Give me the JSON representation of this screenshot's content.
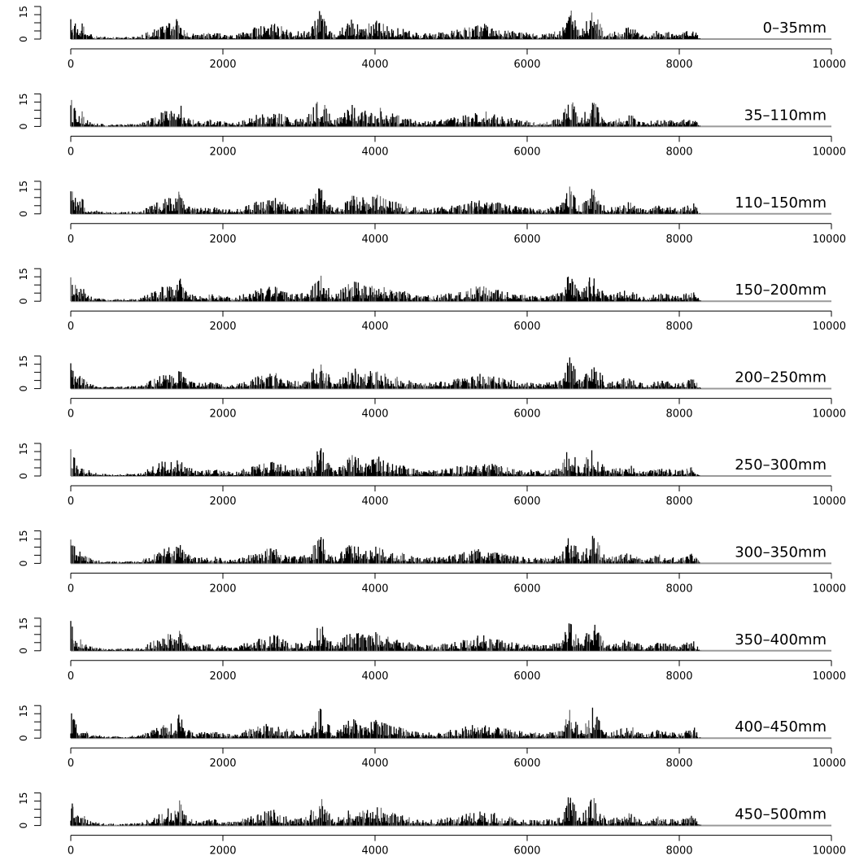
{
  "chart_data": {
    "type": "bar",
    "title": "",
    "xlabel": "",
    "ylabel": "",
    "xlim": [
      0,
      10000
    ],
    "ylim": [
      0,
      18
    ],
    "x_ticks": [
      "0",
      "2000",
      "4000",
      "6000",
      "8000",
      "10000"
    ],
    "y_tick_labels": [
      "0",
      "15"
    ],
    "x_tick_values": [
      0,
      2000,
      4000,
      6000,
      8000,
      10000
    ],
    "y_tick_values": [
      0,
      15
    ],
    "grid": false,
    "legend": "none",
    "panels": [
      {
        "label": "0–35mm"
      },
      {
        "label": "35–110mm"
      },
      {
        "label": "110–150mm"
      },
      {
        "label": "150–200mm"
      },
      {
        "label": "200–250mm"
      },
      {
        "label": "250–300mm"
      },
      {
        "label": "300–350mm"
      },
      {
        "label": "350–400mm"
      },
      {
        "label": "400–450mm"
      },
      {
        "label": "450–500mm"
      }
    ],
    "profile": [
      {
        "x": 0,
        "y": 17
      },
      {
        "x": 50,
        "y": 12
      },
      {
        "x": 100,
        "y": 6
      },
      {
        "x": 150,
        "y": 9
      },
      {
        "x": 200,
        "y": 4
      },
      {
        "x": 300,
        "y": 2
      },
      {
        "x": 500,
        "y": 1
      },
      {
        "x": 900,
        "y": 1.5
      },
      {
        "x": 1150,
        "y": 7
      },
      {
        "x": 1250,
        "y": 9
      },
      {
        "x": 1300,
        "y": 10
      },
      {
        "x": 1350,
        "y": 8
      },
      {
        "x": 1430,
        "y": 14
      },
      {
        "x": 1500,
        "y": 6
      },
      {
        "x": 1650,
        "y": 3
      },
      {
        "x": 1850,
        "y": 4
      },
      {
        "x": 2150,
        "y": 2
      },
      {
        "x": 2450,
        "y": 7
      },
      {
        "x": 2700,
        "y": 9
      },
      {
        "x": 2900,
        "y": 4
      },
      {
        "x": 3100,
        "y": 5
      },
      {
        "x": 3280,
        "y": 17
      },
      {
        "x": 3450,
        "y": 3
      },
      {
        "x": 3600,
        "y": 8
      },
      {
        "x": 3700,
        "y": 12
      },
      {
        "x": 3850,
        "y": 9
      },
      {
        "x": 4050,
        "y": 11
      },
      {
        "x": 4150,
        "y": 8
      },
      {
        "x": 4350,
        "y": 6
      },
      {
        "x": 4600,
        "y": 3
      },
      {
        "x": 4900,
        "y": 4
      },
      {
        "x": 5150,
        "y": 6
      },
      {
        "x": 5400,
        "y": 9
      },
      {
        "x": 5650,
        "y": 6
      },
      {
        "x": 5900,
        "y": 4
      },
      {
        "x": 6200,
        "y": 3
      },
      {
        "x": 6450,
        "y": 5
      },
      {
        "x": 6560,
        "y": 18
      },
      {
        "x": 6700,
        "y": 4
      },
      {
        "x": 6860,
        "y": 17
      },
      {
        "x": 7050,
        "y": 3
      },
      {
        "x": 7350,
        "y": 7
      },
      {
        "x": 7550,
        "y": 2
      },
      {
        "x": 7720,
        "y": 5
      },
      {
        "x": 8000,
        "y": 3
      },
      {
        "x": 8200,
        "y": 6
      },
      {
        "x": 8260,
        "y": 1
      },
      {
        "x": 8300,
        "y": 0
      },
      {
        "x": 10000,
        "y": 0
      }
    ]
  }
}
